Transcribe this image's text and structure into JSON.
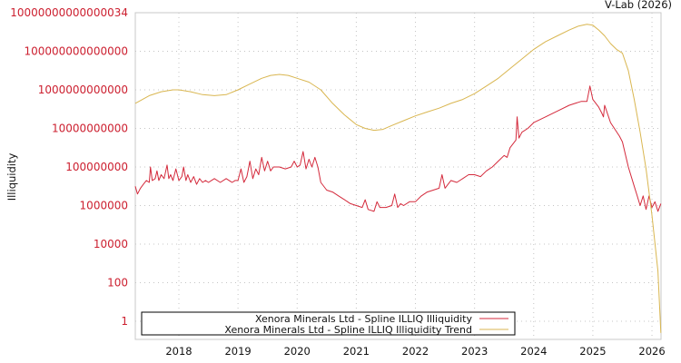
{
  "credit": "V-Lab (2026)",
  "chart_data": {
    "type": "line",
    "title": "",
    "xlabel": "",
    "ylabel": "Illiquidity",
    "yscale": "log",
    "y_tick_labels": [
      "10000000000000034",
      "100000000000000",
      "1000000000000",
      "10000000000",
      "100000000",
      "1000000",
      "10000",
      "100",
      "1"
    ],
    "y_tick_log10": [
      16,
      14,
      12,
      10,
      8,
      6,
      4,
      2,
      0
    ],
    "x_tick_labels": [
      "2018",
      "2019",
      "2020",
      "2021",
      "2022",
      "2023",
      "2024",
      "2025",
      "2026"
    ],
    "x_range": [
      2017.26,
      2026.15
    ],
    "ylim_log10": [
      -0.95,
      16
    ],
    "grid": true,
    "legend_position": "bottom-left inside",
    "series": [
      {
        "name": "Xenora Minerals Ltd - Spline ILLIQ Illiquidity",
        "color": "#d42a3c",
        "note": "values are approximate log10(illiquidity) read from chart",
        "x": [
          2017.26,
          2017.3,
          2017.35,
          2017.4,
          2017.45,
          2017.5,
          2017.52,
          2017.55,
          2017.6,
          2017.63,
          2017.66,
          2017.7,
          2017.75,
          2017.8,
          2017.83,
          2017.86,
          2017.9,
          2017.95,
          2018.0,
          2018.05,
          2018.08,
          2018.12,
          2018.15,
          2018.2,
          2018.25,
          2018.3,
          2018.35,
          2018.4,
          2018.45,
          2018.5,
          2018.55,
          2018.6,
          2018.7,
          2018.8,
          2018.9,
          2018.95,
          2019.0,
          2019.05,
          2019.1,
          2019.15,
          2019.2,
          2019.25,
          2019.3,
          2019.35,
          2019.4,
          2019.45,
          2019.5,
          2019.55,
          2019.6,
          2019.7,
          2019.8,
          2019.9,
          2019.95,
          2020.0,
          2020.05,
          2020.1,
          2020.15,
          2020.2,
          2020.25,
          2020.3,
          2020.35,
          2020.4,
          2020.5,
          2020.6,
          2020.7,
          2020.8,
          2020.9,
          2021.0,
          2021.1,
          2021.15,
          2021.2,
          2021.3,
          2021.35,
          2021.4,
          2021.5,
          2021.6,
          2021.65,
          2021.7,
          2021.75,
          2021.8,
          2021.9,
          2022.0,
          2022.1,
          2022.2,
          2022.3,
          2022.4,
          2022.45,
          2022.5,
          2022.6,
          2022.7,
          2022.8,
          2022.9,
          2023.0,
          2023.1,
          2023.2,
          2023.3,
          2023.4,
          2023.5,
          2023.55,
          2023.6,
          2023.7,
          2023.72,
          2023.75,
          2023.8,
          2023.9,
          2024.0,
          2024.2,
          2024.4,
          2024.6,
          2024.7,
          2024.8,
          2024.88,
          2024.9,
          2024.95,
          2025.0,
          2025.1,
          2025.15,
          2025.18,
          2025.2,
          2025.3,
          2025.45,
          2025.5,
          2025.6,
          2025.7,
          2025.75,
          2025.8,
          2025.85,
          2025.9,
          2025.95,
          2026.0,
          2026.05,
          2026.1,
          2026.15
        ],
        "log10": [
          7.0,
          6.6,
          6.9,
          7.1,
          7.3,
          7.2,
          8.0,
          7.3,
          7.4,
          7.8,
          7.3,
          7.6,
          7.4,
          8.1,
          7.4,
          7.6,
          7.3,
          7.9,
          7.3,
          7.5,
          8.0,
          7.3,
          7.6,
          7.2,
          7.5,
          7.1,
          7.4,
          7.2,
          7.3,
          7.2,
          7.3,
          7.4,
          7.2,
          7.4,
          7.2,
          7.3,
          7.3,
          7.9,
          7.2,
          7.5,
          8.3,
          7.4,
          7.9,
          7.6,
          8.5,
          7.8,
          8.3,
          7.8,
          8.0,
          8.0,
          7.9,
          8.0,
          8.3,
          8.0,
          8.1,
          8.8,
          7.9,
          8.4,
          8.0,
          8.5,
          8.0,
          7.2,
          6.8,
          6.7,
          6.5,
          6.3,
          6.1,
          6.0,
          5.9,
          6.3,
          5.8,
          5.7,
          6.2,
          5.9,
          5.9,
          6.0,
          6.6,
          5.9,
          6.1,
          6.0,
          6.2,
          6.2,
          6.5,
          6.7,
          6.8,
          6.9,
          7.6,
          6.9,
          7.3,
          7.2,
          7.4,
          7.6,
          7.6,
          7.5,
          7.8,
          8.0,
          8.3,
          8.6,
          8.5,
          9.0,
          9.4,
          10.6,
          9.5,
          9.8,
          10.0,
          10.3,
          10.6,
          10.9,
          11.2,
          11.3,
          11.4,
          11.4,
          11.4,
          12.2,
          11.5,
          11.1,
          10.8,
          10.6,
          11.2,
          10.3,
          9.6,
          9.3,
          8.0,
          7.0,
          6.5,
          6.0,
          6.5,
          5.8,
          6.5,
          5.9,
          6.2,
          5.7,
          6.1
        ]
      },
      {
        "name": "Xenora Minerals Ltd - Spline ILLIQ Illiquidity Trend",
        "color": "#d9b650",
        "note": "values are approximate log10(illiquidity) read from chart",
        "x": [
          2017.26,
          2017.5,
          2017.7,
          2017.9,
          2018.0,
          2018.2,
          2018.4,
          2018.6,
          2018.8,
          2019.0,
          2019.2,
          2019.4,
          2019.55,
          2019.7,
          2019.85,
          2020.0,
          2020.2,
          2020.4,
          2020.6,
          2020.8,
          2021.0,
          2021.15,
          2021.3,
          2021.45,
          2021.6,
          2021.8,
          2022.0,
          2022.2,
          2022.4,
          2022.6,
          2022.8,
          2023.0,
          2023.2,
          2023.4,
          2023.6,
          2023.8,
          2024.0,
          2024.2,
          2024.4,
          2024.6,
          2024.75,
          2024.9,
          2025.0,
          2025.1,
          2025.2,
          2025.3,
          2025.4,
          2025.5,
          2025.6,
          2025.7,
          2025.8,
          2025.9,
          2026.0,
          2026.1,
          2026.15
        ],
        "log10": [
          11.3,
          11.7,
          11.9,
          12.0,
          12.0,
          11.9,
          11.75,
          11.7,
          11.75,
          12.0,
          12.3,
          12.6,
          12.75,
          12.8,
          12.75,
          12.6,
          12.4,
          12.0,
          11.3,
          10.7,
          10.2,
          10.0,
          9.9,
          9.95,
          10.15,
          10.4,
          10.65,
          10.85,
          11.05,
          11.3,
          11.5,
          11.8,
          12.2,
          12.6,
          13.1,
          13.6,
          14.1,
          14.5,
          14.8,
          15.1,
          15.3,
          15.4,
          15.35,
          15.1,
          14.8,
          14.4,
          14.1,
          13.9,
          13.0,
          11.5,
          9.8,
          7.9,
          5.5,
          2.6,
          -0.6
        ]
      }
    ]
  }
}
